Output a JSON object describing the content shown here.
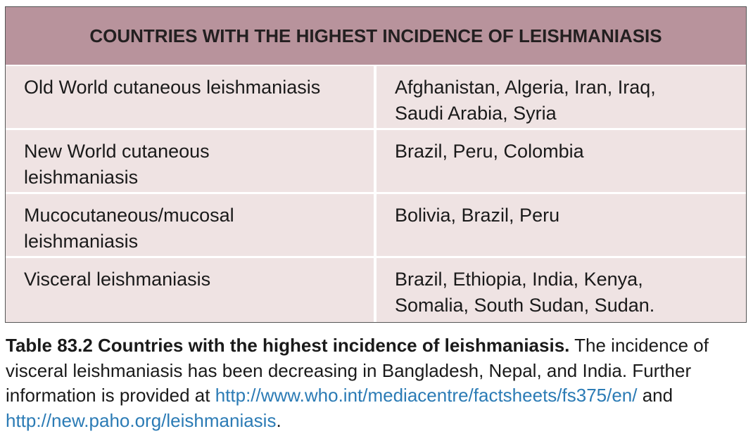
{
  "table": {
    "header": "COUNTRIES WITH THE HIGHEST INCIDENCE OF LEISHMANIASIS",
    "rows": [
      [
        [
          "Old World cutaneous leishmaniasis"
        ],
        [
          "Afghanistan, Algeria, Iran, Iraq,",
          "Saudi Arabia, Syria"
        ]
      ],
      [
        [
          "New World cutaneous",
          "leishmaniasis"
        ],
        [
          "Brazil, Peru, Colombia"
        ]
      ],
      [
        [
          "Mucocutaneous/mucosal",
          "leishmaniasis"
        ],
        [
          "Bolivia, Brazil, Peru"
        ]
      ],
      [
        [
          "Visceral leishmaniasis"
        ],
        [
          "Brazil, Ethiopia, India, Kenya,",
          "Somalia, South Sudan, Sudan."
        ]
      ]
    ]
  },
  "caption": {
    "label": "Table 83.2 Countries with the highest incidence of leishmaniasis.",
    "text": " The incidence of visceral leishmaniasis has been decreasing in Bangladesh, Nepal, and India. Further information is provided at ",
    "link1": "http://www.who.int/mediacentre/factsheets/fs375/en/",
    "joiner": " and ",
    "link2": "http://new.paho.org/leishmaniasis",
    "end": "."
  }
}
